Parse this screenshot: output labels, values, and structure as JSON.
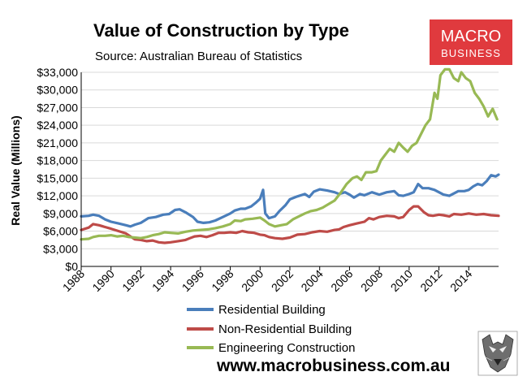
{
  "branding": {
    "logo_line1": "MACRO",
    "logo_line2": "BUSINESS",
    "logo_color": "#e03a3e",
    "website": "www.macrobusiness.com.au"
  },
  "chart_data": {
    "type": "line",
    "title": "Value of Construction by Type",
    "subtitle": "Source: Australian Bureau of Statistics",
    "ylabel": "Real Value (Millions)",
    "xlabel": "",
    "xlim": [
      1988,
      2015
    ],
    "ylim": [
      0,
      33000
    ],
    "y_ticks": [
      0,
      3000,
      6000,
      9000,
      12000,
      15000,
      18000,
      21000,
      24000,
      27000,
      30000,
      33000
    ],
    "y_tick_labels": [
      "$0",
      "$3,000",
      "$6,000",
      "$9,000",
      "$12,000",
      "$15,000",
      "$18,000",
      "$21,000",
      "$24,000",
      "$27,000",
      "$30,000",
      "$33,000"
    ],
    "x_tick_labels": [
      "1988",
      "1990",
      "1992",
      "1994",
      "1996",
      "1998",
      "2000",
      "2002",
      "2004",
      "2006",
      "2008",
      "2010",
      "2012",
      "2014"
    ],
    "legend_position": "bottom",
    "series": [
      {
        "name": "Residential Building",
        "color": "#4a7ebb",
        "points": [
          [
            1988.0,
            8500
          ],
          [
            1988.5,
            8600
          ],
          [
            1988.8,
            8800
          ],
          [
            1989.2,
            8600
          ],
          [
            1989.6,
            8000
          ],
          [
            1990.0,
            7600
          ],
          [
            1990.5,
            7300
          ],
          [
            1991.0,
            7000
          ],
          [
            1991.3,
            6800
          ],
          [
            1991.6,
            7100
          ],
          [
            1992.0,
            7400
          ],
          [
            1992.5,
            8200
          ],
          [
            1993.0,
            8400
          ],
          [
            1993.5,
            8800
          ],
          [
            1993.9,
            8900
          ],
          [
            1994.3,
            9600
          ],
          [
            1994.6,
            9700
          ],
          [
            1995.0,
            9200
          ],
          [
            1995.5,
            8400
          ],
          [
            1995.8,
            7600
          ],
          [
            1996.2,
            7400
          ],
          [
            1996.6,
            7500
          ],
          [
            1997.0,
            7800
          ],
          [
            1997.5,
            8400
          ],
          [
            1998.0,
            9000
          ],
          [
            1998.3,
            9500
          ],
          [
            1998.7,
            9800
          ],
          [
            1999.0,
            9800
          ],
          [
            1999.4,
            10200
          ],
          [
            1999.7,
            10800
          ],
          [
            2000.0,
            11500
          ],
          [
            2000.2,
            13000
          ],
          [
            2000.35,
            9000
          ],
          [
            2000.6,
            8200
          ],
          [
            2001.0,
            8500
          ],
          [
            2001.3,
            9400
          ],
          [
            2001.7,
            10400
          ],
          [
            2002.0,
            11400
          ],
          [
            2002.5,
            11900
          ],
          [
            2003.0,
            12300
          ],
          [
            2003.3,
            11800
          ],
          [
            2003.6,
            12700
          ],
          [
            2004.0,
            13100
          ],
          [
            2004.5,
            12900
          ],
          [
            2005.0,
            12600
          ],
          [
            2005.3,
            12300
          ],
          [
            2005.7,
            12600
          ],
          [
            2006.0,
            12200
          ],
          [
            2006.3,
            11700
          ],
          [
            2006.7,
            12300
          ],
          [
            2007.0,
            12100
          ],
          [
            2007.5,
            12600
          ],
          [
            2008.0,
            12200
          ],
          [
            2008.5,
            12600
          ],
          [
            2009.0,
            12800
          ],
          [
            2009.3,
            12100
          ],
          [
            2009.6,
            12000
          ],
          [
            2010.0,
            12300
          ],
          [
            2010.3,
            12600
          ],
          [
            2010.6,
            14000
          ],
          [
            2010.9,
            13300
          ],
          [
            2011.3,
            13300
          ],
          [
            2011.7,
            13000
          ],
          [
            2012.0,
            12600
          ],
          [
            2012.3,
            12200
          ],
          [
            2012.7,
            12000
          ],
          [
            2013.0,
            12400
          ],
          [
            2013.3,
            12800
          ],
          [
            2013.7,
            12800
          ],
          [
            2014.0,
            13000
          ],
          [
            2014.3,
            13600
          ],
          [
            2014.6,
            14000
          ],
          [
            2014.9,
            13800
          ],
          [
            2015.2,
            14500
          ],
          [
            2015.5,
            15500
          ],
          [
            2015.8,
            15300
          ],
          [
            2016.0,
            15600
          ]
        ]
      },
      {
        "name": "Non-Residential Building",
        "color": "#be4b48",
        "points": [
          [
            1988.0,
            6200
          ],
          [
            1988.5,
            6600
          ],
          [
            1988.8,
            7200
          ],
          [
            1989.2,
            7000
          ],
          [
            1989.6,
            6700
          ],
          [
            1990.0,
            6400
          ],
          [
            1990.5,
            6000
          ],
          [
            1991.0,
            5600
          ],
          [
            1991.3,
            5100
          ],
          [
            1991.6,
            4600
          ],
          [
            1992.0,
            4500
          ],
          [
            1992.4,
            4300
          ],
          [
            1992.8,
            4400
          ],
          [
            1993.2,
            4100
          ],
          [
            1993.6,
            4000
          ],
          [
            1994.0,
            4100
          ],
          [
            1994.5,
            4300
          ],
          [
            1995.0,
            4500
          ],
          [
            1995.3,
            4800
          ],
          [
            1995.6,
            5100
          ],
          [
            1996.0,
            5200
          ],
          [
            1996.4,
            5000
          ],
          [
            1996.8,
            5300
          ],
          [
            1997.2,
            5700
          ],
          [
            1997.6,
            5700
          ],
          [
            1998.0,
            5800
          ],
          [
            1998.4,
            5700
          ],
          [
            1998.8,
            6000
          ],
          [
            1999.2,
            5800
          ],
          [
            1999.6,
            5700
          ],
          [
            2000.0,
            5400
          ],
          [
            2000.3,
            5300
          ],
          [
            2000.6,
            5000
          ],
          [
            2001.0,
            4800
          ],
          [
            2001.5,
            4700
          ],
          [
            2002.0,
            4900
          ],
          [
            2002.5,
            5400
          ],
          [
            2003.0,
            5500
          ],
          [
            2003.5,
            5800
          ],
          [
            2004.0,
            6000
          ],
          [
            2004.5,
            5900
          ],
          [
            2005.0,
            6200
          ],
          [
            2005.3,
            6300
          ],
          [
            2005.6,
            6700
          ],
          [
            2006.0,
            7000
          ],
          [
            2006.5,
            7300
          ],
          [
            2007.0,
            7600
          ],
          [
            2007.3,
            8200
          ],
          [
            2007.6,
            8000
          ],
          [
            2008.0,
            8400
          ],
          [
            2008.5,
            8600
          ],
          [
            2009.0,
            8500
          ],
          [
            2009.3,
            8200
          ],
          [
            2009.6,
            8400
          ],
          [
            2010.0,
            9600
          ],
          [
            2010.3,
            10200
          ],
          [
            2010.6,
            10200
          ],
          [
            2011.0,
            9200
          ],
          [
            2011.3,
            8700
          ],
          [
            2011.6,
            8600
          ],
          [
            2012.0,
            8800
          ],
          [
            2012.3,
            8700
          ],
          [
            2012.7,
            8500
          ],
          [
            2013.0,
            8900
          ],
          [
            2013.5,
            8800
          ],
          [
            2014.0,
            9000
          ],
          [
            2014.5,
            8800
          ],
          [
            2015.0,
            8900
          ],
          [
            2015.5,
            8700
          ],
          [
            2016.0,
            8600
          ]
        ]
      },
      {
        "name": "Engineering Construction",
        "color": "#98b954",
        "points": [
          [
            1988.0,
            4600
          ],
          [
            1988.5,
            4700
          ],
          [
            1988.8,
            5000
          ],
          [
            1989.2,
            5200
          ],
          [
            1989.6,
            5200
          ],
          [
            1990.0,
            5300
          ],
          [
            1990.4,
            5100
          ],
          [
            1990.8,
            5200
          ],
          [
            1991.2,
            5000
          ],
          [
            1991.6,
            4900
          ],
          [
            1992.0,
            4800
          ],
          [
            1992.4,
            5000
          ],
          [
            1992.8,
            5300
          ],
          [
            1993.2,
            5500
          ],
          [
            1993.6,
            5800
          ],
          [
            1994.0,
            5700
          ],
          [
            1994.5,
            5600
          ],
          [
            1995.0,
            5900
          ],
          [
            1995.5,
            6100
          ],
          [
            1996.0,
            6200
          ],
          [
            1996.5,
            6300
          ],
          [
            1997.0,
            6500
          ],
          [
            1997.5,
            6800
          ],
          [
            1998.0,
            7200
          ],
          [
            1998.3,
            7800
          ],
          [
            1998.7,
            7700
          ],
          [
            1999.0,
            8000
          ],
          [
            1999.5,
            8100
          ],
          [
            2000.0,
            8300
          ],
          [
            2000.3,
            7800
          ],
          [
            2000.6,
            7200
          ],
          [
            2001.0,
            6800
          ],
          [
            2001.4,
            7000
          ],
          [
            2001.8,
            7200
          ],
          [
            2002.2,
            8000
          ],
          [
            2002.6,
            8500
          ],
          [
            2003.0,
            9000
          ],
          [
            2003.4,
            9400
          ],
          [
            2003.8,
            9600
          ],
          [
            2004.2,
            10000
          ],
          [
            2004.6,
            10600
          ],
          [
            2005.0,
            11200
          ],
          [
            2005.4,
            12500
          ],
          [
            2005.8,
            14000
          ],
          [
            2006.2,
            15000
          ],
          [
            2006.5,
            15300
          ],
          [
            2006.8,
            14700
          ],
          [
            2007.1,
            16000
          ],
          [
            2007.5,
            16000
          ],
          [
            2007.8,
            16200
          ],
          [
            2008.1,
            18000
          ],
          [
            2008.4,
            19000
          ],
          [
            2008.7,
            20000
          ],
          [
            2009.0,
            19500
          ],
          [
            2009.3,
            21000
          ],
          [
            2009.6,
            20200
          ],
          [
            2009.9,
            19500
          ],
          [
            2010.2,
            20500
          ],
          [
            2010.5,
            21000
          ],
          [
            2010.8,
            22500
          ],
          [
            2011.1,
            24000
          ],
          [
            2011.4,
            25000
          ],
          [
            2011.7,
            29500
          ],
          [
            2011.9,
            28500
          ],
          [
            2012.1,
            32500
          ],
          [
            2012.4,
            33500
          ],
          [
            2012.7,
            33500
          ],
          [
            2013.0,
            32000
          ],
          [
            2013.3,
            31500
          ],
          [
            2013.5,
            33000
          ],
          [
            2013.8,
            32000
          ],
          [
            2014.1,
            31500
          ],
          [
            2014.4,
            29500
          ],
          [
            2014.7,
            28500
          ],
          [
            2015.0,
            27200
          ],
          [
            2015.3,
            25500
          ],
          [
            2015.6,
            26800
          ],
          [
            2015.9,
            25000
          ]
        ]
      }
    ]
  }
}
